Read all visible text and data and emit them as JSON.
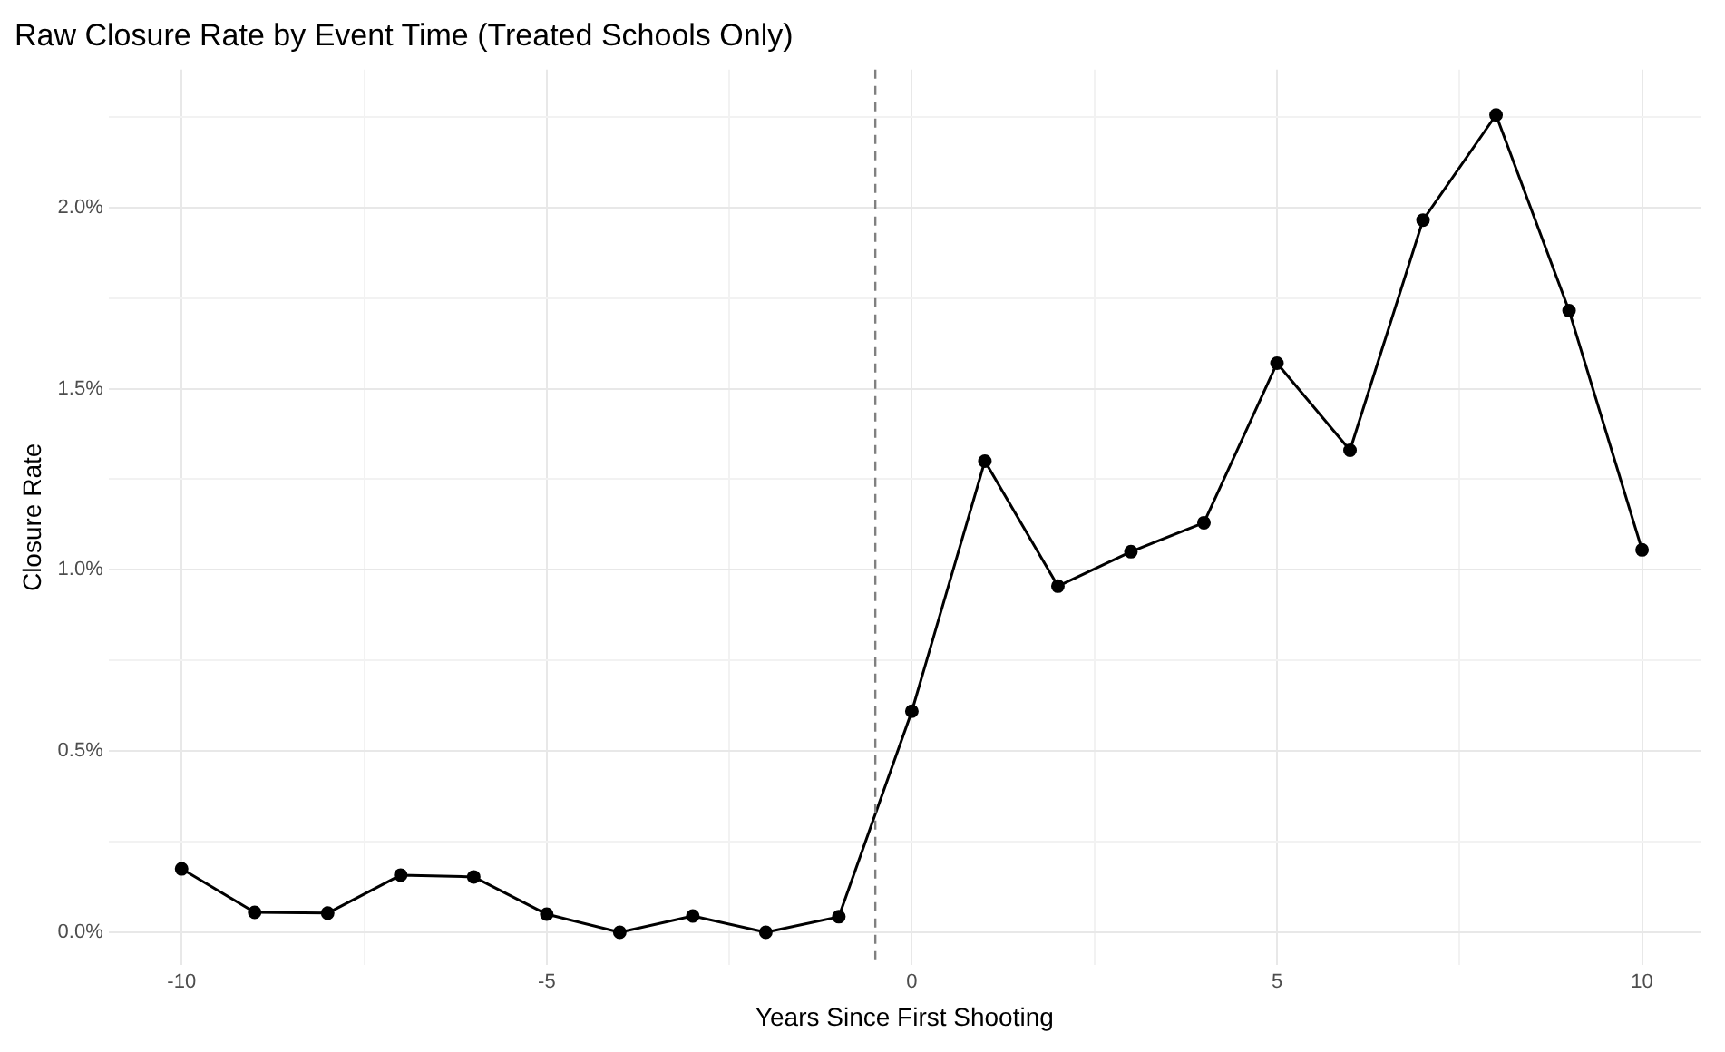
{
  "chart_data": {
    "type": "line",
    "title": "Raw Closure Rate by Event Time (Treated Schools Only)",
    "xlabel": "Years Since First Shooting",
    "ylabel": "Closure Rate",
    "x": [
      -10,
      -9,
      -8,
      -7,
      -6,
      -5,
      -4,
      -3,
      -2,
      -1,
      0,
      1,
      2,
      3,
      4,
      5,
      6,
      7,
      8,
      9,
      10
    ],
    "series": [
      {
        "color": "#000000",
        "values": [
          0.175,
          0.055,
          0.053,
          0.158,
          0.153,
          0.05,
          0.0,
          0.045,
          0.0,
          0.043,
          0.61,
          1.3,
          0.955,
          1.05,
          1.13,
          1.57,
          1.33,
          1.965,
          2.255,
          1.715,
          1.055
        ]
      }
    ],
    "xlim": [
      -11,
      10.8
    ],
    "ylim": [
      -0.09,
      2.38
    ],
    "xticks": [
      -10,
      {
        "value": -7.5,
        "label": null
      },
      -5,
      {
        "value": -2.5,
        "label": null
      },
      0,
      {
        "value": 2.5,
        "label": null
      },
      5,
      {
        "value": 7.5,
        "label": null
      },
      10
    ],
    "yticks": [
      {
        "value": 0,
        "label": "0.0%"
      },
      {
        "value": 0.25,
        "label": null
      },
      {
        "value": 0.5,
        "label": "0.5%"
      },
      {
        "value": 0.75,
        "label": null
      },
      {
        "value": 1,
        "label": "1.0%"
      },
      {
        "value": 1.25,
        "label": null
      },
      {
        "value": 1.5,
        "label": "1.5%"
      },
      {
        "value": 1.75,
        "label": null
      },
      {
        "value": 2,
        "label": "2.0%"
      },
      {
        "value": 2.25,
        "label": null
      }
    ],
    "ref_lines": [
      {
        "axis": "x",
        "value": -0.5,
        "color": "#808080",
        "line_style": "dashed"
      }
    ],
    "grid": true,
    "legend": false,
    "marker": "circle",
    "line_style": "solid"
  }
}
